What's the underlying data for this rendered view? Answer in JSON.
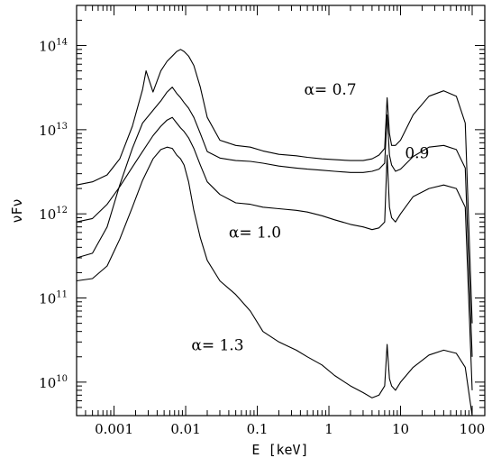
{
  "chart_data": {
    "type": "line",
    "xlabel": "E [keV]",
    "ylabel": "νFν",
    "x_scale": "log",
    "y_scale": "log",
    "xlim": [
      0.0003,
      150
    ],
    "ylim": [
      4000000000.0,
      300000000000000.0
    ],
    "x_ticks": [
      {
        "value": 0.001,
        "label": "0.001"
      },
      {
        "value": 0.01,
        "label": "0.01"
      },
      {
        "value": 0.1,
        "label": "0.1"
      },
      {
        "value": 1,
        "label": "1"
      },
      {
        "value": 10,
        "label": "10"
      },
      {
        "value": 100,
        "label": "100"
      }
    ],
    "y_ticks": [
      {
        "value": 10000000000.0,
        "base": "10",
        "exp": "10"
      },
      {
        "value": 100000000000.0,
        "base": "10",
        "exp": "11"
      },
      {
        "value": 1000000000000.0,
        "base": "10",
        "exp": "12"
      },
      {
        "value": 10000000000000.0,
        "base": "10",
        "exp": "13"
      },
      {
        "value": 100000000000000.0,
        "base": "10",
        "exp": "14"
      }
    ],
    "annotations": [
      {
        "text": "α=  0.7",
        "x": 0.45,
        "y": 26000000000000.0
      },
      {
        "text": "0.9",
        "x": 11.5,
        "y": 4600000000000.0
      },
      {
        "text": "α=  1.0",
        "x": 0.04,
        "y": 520000000000.0
      },
      {
        "text": "α=  1.3",
        "x": 0.012,
        "y": 24000000000.0
      }
    ],
    "grid": false,
    "series": [
      {
        "name": "α = 0.7",
        "x": [
          0.0003,
          0.0005,
          0.0008,
          0.0012,
          0.0018,
          0.0025,
          0.0028,
          0.0035,
          0.0045,
          0.0055,
          0.0065,
          0.0075,
          0.0085,
          0.0095,
          0.011,
          0.013,
          0.016,
          0.02,
          0.03,
          0.05,
          0.08,
          0.12,
          0.2,
          0.35,
          0.5,
          0.8,
          1.2,
          2,
          3,
          4,
          5,
          6,
          6.5,
          7,
          7.5,
          8.5,
          10,
          15,
          25,
          40,
          60,
          80,
          100
        ],
        "y": [
          2200000000000.0,
          2400000000000.0,
          2900000000000.0,
          4500000000000.0,
          11000000000000.0,
          30000000000000.0,
          50000000000000.0,
          28000000000000.0,
          50000000000000.0,
          65000000000000.0,
          75000000000000.0,
          85000000000000.0,
          90000000000000.0,
          85000000000000.0,
          75000000000000.0,
          58000000000000.0,
          32000000000000.0,
          14000000000000.0,
          7500000000000.0,
          6500000000000.0,
          6200000000000.0,
          5600000000000.0,
          5100000000000.0,
          4900000000000.0,
          4700000000000.0,
          4500000000000.0,
          4400000000000.0,
          4300000000000.0,
          4300000000000.0,
          4500000000000.0,
          5000000000000.0,
          6000000000000.0,
          24000000000000.0,
          9000000000000.0,
          6500000000000.0,
          6500000000000.0,
          7500000000000.0,
          15000000000000.0,
          25000000000000.0,
          29000000000000.0,
          25000000000000.0,
          12000000000000.0,
          50000000000.0
        ]
      },
      {
        "name": "α = 0.9",
        "x": [
          0.0003,
          0.0005,
          0.0008,
          0.0012,
          0.0018,
          0.0025,
          0.0035,
          0.0045,
          0.0055,
          0.0065,
          0.0075,
          0.0085,
          0.0095,
          0.011,
          0.013,
          0.016,
          0.02,
          0.03,
          0.05,
          0.08,
          0.12,
          0.2,
          0.35,
          0.5,
          0.8,
          1.2,
          2,
          3,
          4,
          5,
          6,
          6.5,
          7,
          7.5,
          8.5,
          10,
          15,
          25,
          40,
          60,
          80,
          100
        ],
        "y": [
          300000000000.0,
          340000000000.0,
          700000000000.0,
          2200000000000.0,
          6000000000000.0,
          12000000000000.0,
          17000000000000.0,
          22000000000000.0,
          28000000000000.0,
          32000000000000.0,
          27000000000000.0,
          24000000000000.0,
          21000000000000.0,
          18000000000000.0,
          14000000000000.0,
          9000000000000.0,
          5500000000000.0,
          4600000000000.0,
          4300000000000.0,
          4200000000000.0,
          4000000000000.0,
          3700000000000.0,
          3500000000000.0,
          3400000000000.0,
          3300000000000.0,
          3200000000000.0,
          3100000000000.0,
          3100000000000.0,
          3200000000000.0,
          3400000000000.0,
          4000000000000.0,
          15000000000000.0,
          5000000000000.0,
          3800000000000.0,
          3200000000000.0,
          3400000000000.0,
          4800000000000.0,
          6200000000000.0,
          6500000000000.0,
          5800000000000.0,
          3500000000000.0,
          20000000000.0
        ]
      },
      {
        "name": "α = 1.0",
        "x": [
          0.0003,
          0.0005,
          0.0008,
          0.0012,
          0.0018,
          0.0025,
          0.0035,
          0.0045,
          0.0055,
          0.0065,
          0.0075,
          0.0085,
          0.0095,
          0.011,
          0.013,
          0.016,
          0.02,
          0.03,
          0.05,
          0.08,
          0.12,
          0.2,
          0.35,
          0.5,
          0.8,
          1.2,
          2,
          3,
          4,
          5,
          6,
          6.5,
          7,
          7.5,
          8.5,
          10,
          15,
          25,
          40,
          60,
          80,
          100
        ],
        "y": [
          800000000000.0,
          880000000000.0,
          1300000000000.0,
          2100000000000.0,
          3600000000000.0,
          5500000000000.0,
          8500000000000.0,
          11000000000000.0,
          13000000000000.0,
          14000000000000.0,
          12000000000000.0,
          10500000000000.0,
          9500000000000.0,
          8000000000000.0,
          6000000000000.0,
          3800000000000.0,
          2400000000000.0,
          1700000000000.0,
          1350000000000.0,
          1300000000000.0,
          1200000000000.0,
          1150000000000.0,
          1100000000000.0,
          1050000000000.0,
          950000000000.0,
          850000000000.0,
          750000000000.0,
          700000000000.0,
          650000000000.0,
          680000000000.0,
          800000000000.0,
          5000000000000.0,
          1200000000000.0,
          900000000000.0,
          800000000000.0,
          1000000000000.0,
          1600000000000.0,
          2000000000000.0,
          2200000000000.0,
          2000000000000.0,
          1200000000000.0,
          8000000000.0
        ]
      },
      {
        "name": "α = 1.3",
        "x": [
          0.0003,
          0.0005,
          0.0008,
          0.0012,
          0.0018,
          0.0025,
          0.0035,
          0.0045,
          0.0055,
          0.0065,
          0.0075,
          0.0085,
          0.0095,
          0.011,
          0.013,
          0.016,
          0.02,
          0.03,
          0.05,
          0.08,
          0.12,
          0.2,
          0.35,
          0.5,
          0.8,
          1.2,
          2,
          3,
          4,
          5,
          6,
          6.5,
          7,
          7.5,
          8.5,
          10,
          15,
          25,
          40,
          60,
          80,
          100
        ],
        "y": [
          160000000000.0,
          170000000000.0,
          240000000000.0,
          500000000000.0,
          1200000000000.0,
          2500000000000.0,
          4500000000000.0,
          5800000000000.0,
          6200000000000.0,
          6000000000000.0,
          5000000000000.0,
          4500000000000.0,
          3800000000000.0,
          2400000000000.0,
          1100000000000.0,
          520000000000.0,
          280000000000.0,
          160000000000.0,
          110000000000.0,
          70000000000.0,
          40000000000.0,
          30000000000.0,
          24000000000.0,
          20000000000.0,
          16000000000.0,
          12000000000.0,
          9000000000.0,
          7500000000.0,
          6500000000.0,
          7000000000.0,
          9000000000.0,
          28000000000.0,
          11000000000.0,
          9000000000.0,
          8000000000.0,
          10000000000.0,
          15000000000.0,
          21000000000.0,
          24000000000.0,
          22000000000.0,
          15000000000.0,
          4000000000.0
        ]
      }
    ]
  }
}
